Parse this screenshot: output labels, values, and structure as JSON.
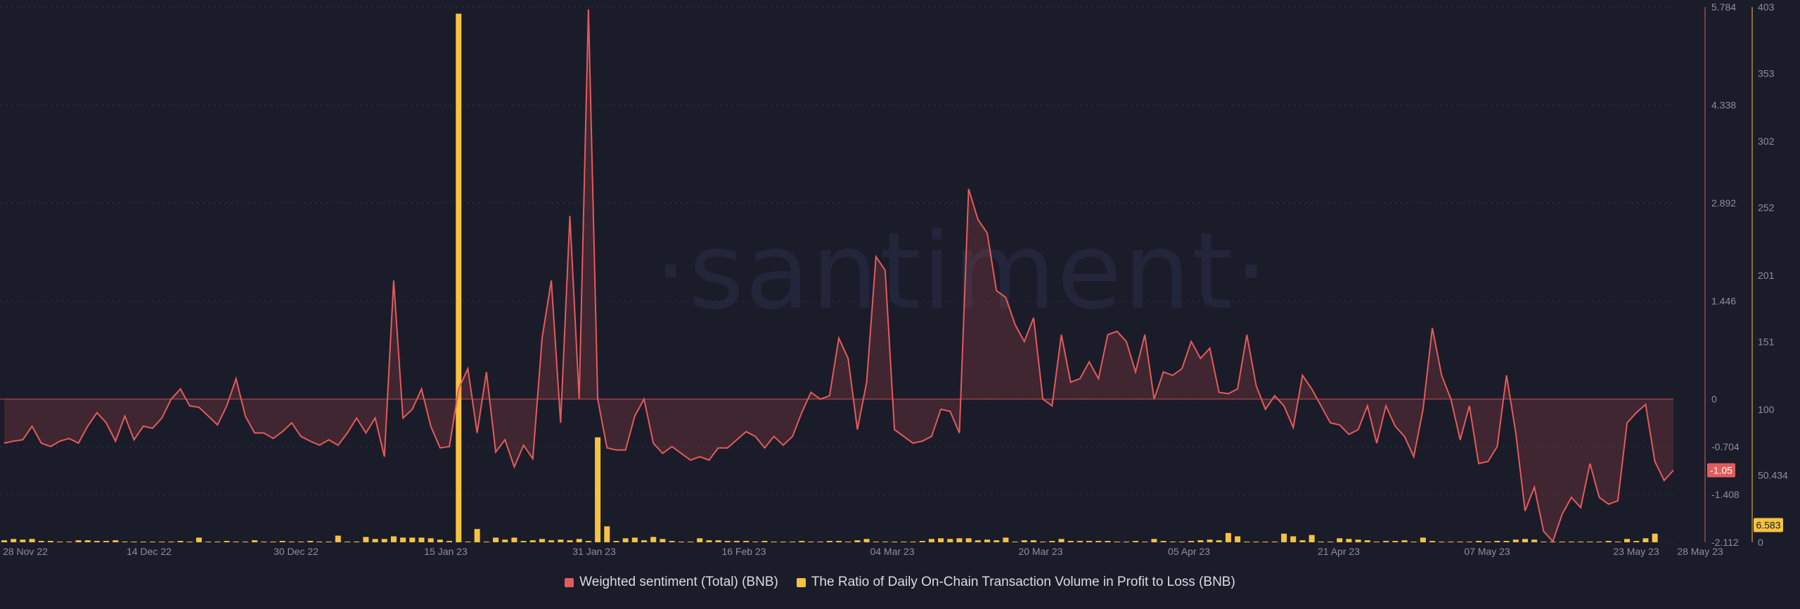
{
  "watermark": "·santiment·",
  "chart_data": {
    "type": "line+bar",
    "x_tick_labels": [
      "28 Nov 22",
      "14 Dec 22",
      "30 Dec 22",
      "15 Jan 23",
      "31 Jan 23",
      "16 Feb 23",
      "04 Mar 23",
      "20 Mar 23",
      "05 Apr 23",
      "21 Apr 23",
      "07 May 23",
      "23 May 23",
      "28 May 23"
    ],
    "grid": true,
    "legend_position": "bottom-center",
    "series": [
      {
        "name": "Weighted sentiment (Total) (BNB)",
        "type": "area-line",
        "color": "#e45b5b",
        "axis": "left-of-pair",
        "ylim": [
          -2.112,
          5.784
        ],
        "ticks": [
          "5.784",
          "4.338",
          "2.892",
          "1.446",
          "0",
          "-0.704",
          "-1.408",
          "-2.112"
        ],
        "last_value": "-1.05",
        "values": [
          -0.65,
          -0.62,
          -0.6,
          -0.4,
          -0.65,
          -0.7,
          -0.62,
          -0.58,
          -0.65,
          -0.4,
          -0.2,
          -0.35,
          -0.62,
          -0.25,
          -0.6,
          -0.4,
          -0.43,
          -0.28,
          0.0,
          0.15,
          -0.1,
          -0.12,
          -0.25,
          -0.38,
          -0.1,
          0.3,
          -0.25,
          -0.5,
          -0.5,
          -0.58,
          -0.48,
          -0.35,
          -0.55,
          -0.62,
          -0.68,
          -0.6,
          -0.68,
          -0.5,
          -0.28,
          -0.5,
          -0.28,
          -0.85,
          1.75,
          -0.28,
          -0.15,
          0.15,
          -0.4,
          -0.72,
          -0.7,
          0.15,
          0.45,
          -0.5,
          0.4,
          -0.78,
          -0.6,
          -1.0,
          -0.68,
          -0.88,
          0.9,
          1.75,
          -0.35,
          2.7,
          0.0,
          5.75,
          0.0,
          -0.72,
          -0.75,
          -0.75,
          -0.25,
          0.0,
          -0.65,
          -0.8,
          -0.7,
          -0.8,
          -0.9,
          -0.85,
          -0.9,
          -0.72,
          -0.72,
          -0.6,
          -0.48,
          -0.55,
          -0.72,
          -0.55,
          -0.68,
          -0.55,
          -0.2,
          0.1,
          0.0,
          0.05,
          0.9,
          0.6,
          -0.45,
          0.25,
          2.1,
          1.9,
          -0.45,
          -0.55,
          -0.65,
          -0.62,
          -0.55,
          -0.15,
          -0.18,
          -0.5,
          3.1,
          2.65,
          2.45,
          1.6,
          1.5,
          1.1,
          0.85,
          1.2,
          0.0,
          -0.1,
          0.95,
          0.25,
          0.3,
          0.55,
          0.3,
          0.95,
          1.0,
          0.85,
          0.4,
          0.95,
          0.0,
          0.4,
          0.35,
          0.45,
          0.85,
          0.6,
          0.75,
          0.1,
          0.08,
          0.15,
          0.95,
          0.2,
          -0.15,
          0.05,
          -0.1,
          -0.42,
          0.35,
          0.15,
          -0.1,
          -0.35,
          -0.38,
          -0.52,
          -0.45,
          -0.1,
          -0.65,
          -0.1,
          -0.4,
          -0.55,
          -0.85,
          -0.15,
          1.05,
          0.35,
          0.0,
          -0.6,
          -0.1,
          -0.95,
          -0.92,
          -0.7,
          0.35,
          -0.5,
          -1.65,
          -1.3,
          -1.95,
          -2.1,
          -1.7,
          -1.45,
          -1.6,
          -0.95,
          -1.45,
          -1.55,
          -1.5,
          -0.35,
          -0.2,
          -0.08,
          -0.92,
          -1.2,
          -1.05
        ]
      },
      {
        "name": "The Ratio of Daily On-Chain Transaction Volume in Profit to Loss (BNB)",
        "type": "bar",
        "color": "#f5c242",
        "axis": "right",
        "ylim": [
          0,
          403
        ],
        "ticks": [
          "403",
          "353",
          "302",
          "252",
          "201",
          "151",
          "100",
          "50.434",
          "0"
        ],
        "last_value": "6.583",
        "values": [
          1.5,
          2.5,
          2.0,
          2.5,
          1.0,
          1.0,
          0.5,
          0.5,
          1.5,
          1.5,
          1.0,
          1.0,
          1.5,
          0.5,
          0.5,
          0.5,
          0.5,
          0.5,
          0.5,
          1.0,
          0.5,
          3.5,
          0.5,
          0.5,
          1.0,
          0.5,
          0.5,
          1.5,
          0.5,
          0.5,
          1.0,
          0.5,
          0.5,
          1.0,
          0.5,
          0.5,
          5.0,
          0.5,
          0.5,
          4.0,
          2.5,
          2.5,
          4.5,
          3.5,
          3.5,
          3.5,
          3.0,
          2.0,
          1.0,
          398,
          0.5,
          10.0,
          0.5,
          3.5,
          2.0,
          3.5,
          1.0,
          1.5,
          2.5,
          1.5,
          2.0,
          1.5,
          2.5,
          1.0,
          79,
          12.0,
          1.0,
          3.0,
          3.5,
          1.5,
          4.0,
          2.5,
          1.0,
          0.5,
          0.5,
          3.0,
          1.5,
          1.5,
          1.0,
          1.0,
          1.0,
          0.5,
          1.0,
          0.5,
          0.5,
          0.5,
          1.0,
          0.5,
          0.5,
          1.0,
          1.0,
          0.5,
          1.5,
          2.5,
          0.5,
          0.5,
          0.5,
          0.5,
          0.5,
          1.0,
          2.5,
          3.0,
          2.5,
          3.0,
          3.0,
          1.5,
          2.0,
          1.5,
          3.5,
          0.5,
          1.5,
          1.5,
          0.5,
          1.0,
          2.5,
          1.0,
          1.0,
          1.0,
          1.0,
          1.0,
          0.5,
          0.5,
          1.0,
          0.5,
          2.5,
          1.0,
          0.5,
          0.5,
          1.0,
          1.5,
          2.0,
          1.5,
          7.0,
          4.5,
          0.5,
          0.5,
          0.5,
          0.5,
          6.5,
          4.5,
          1.5,
          5.5,
          0.5,
          0.5,
          3.0,
          2.5,
          2.0,
          1.5,
          0.5,
          1.0,
          1.0,
          1.5,
          0.5,
          3.5,
          1.0,
          0.5,
          0.5,
          0.5,
          0.5,
          1.0,
          0.5,
          1.0,
          1.0,
          2.0,
          2.5,
          2.0,
          0.5,
          0.5,
          0.5,
          0.5,
          0.5,
          0.5,
          0.5,
          1.0,
          0.5,
          2.5,
          1.0,
          3.0,
          6.5
        ]
      }
    ]
  }
}
